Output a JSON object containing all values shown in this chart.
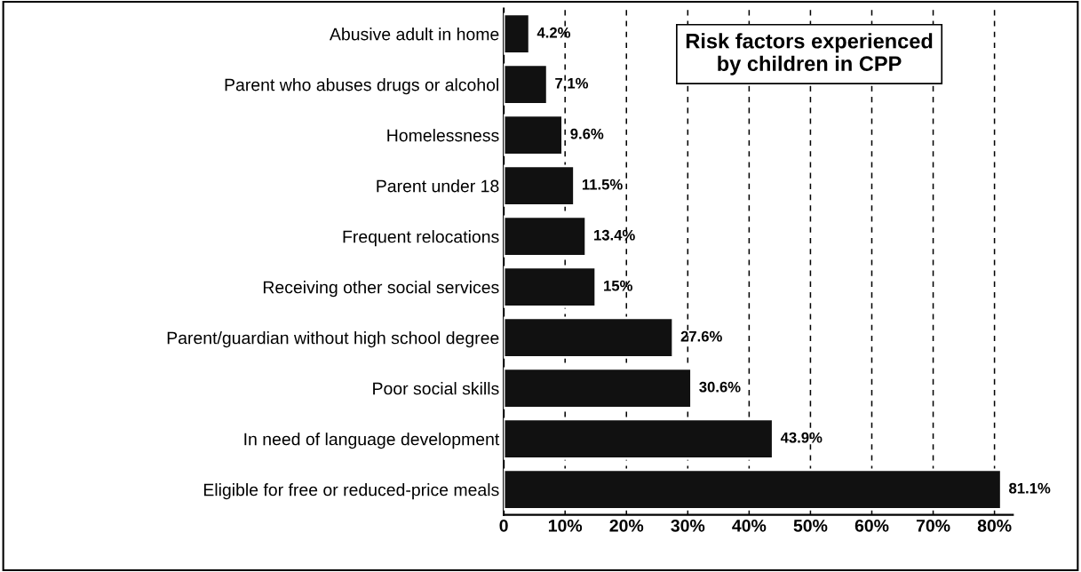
{
  "chart_data": {
    "type": "bar",
    "orientation": "horizontal",
    "title": "Risk factors experienced\nby children in CPP",
    "categories": [
      "Abusive adult in home",
      "Parent who abuses drugs or alcohol",
      "Homelessness",
      "Parent under 18",
      "Frequent relocations",
      "Receiving other social services",
      "Parent/guardian without high school degree",
      "Poor social skills",
      "In need of language development",
      "Eligible for free or reduced-price meals"
    ],
    "values": [
      4.2,
      7.1,
      9.6,
      11.5,
      13.4,
      15,
      27.6,
      30.6,
      43.9,
      81.1
    ],
    "value_labels": [
      "4.2%",
      "7.1%",
      "9.6%",
      "11.5%",
      "13.4%",
      "15%",
      "27.6%",
      "30.6%",
      "43.9%",
      "81.1%"
    ],
    "color": "#111111",
    "xlim": [
      0,
      83
    ],
    "xticks": [
      0,
      {
        "value": 10,
        "label": "10%"
      },
      {
        "value": 20,
        "label": "20%"
      },
      {
        "value": 30,
        "label": "30%"
      },
      {
        "value": 40,
        "label": "40%"
      },
      {
        "value": 50,
        "label": "50%"
      },
      {
        "value": 60,
        "label": "60%"
      },
      {
        "value": 70,
        "label": "70%"
      },
      {
        "value": 80,
        "label": "80%"
      }
    ],
    "grid": "x",
    "line_style": "dashed",
    "legend": false
  }
}
